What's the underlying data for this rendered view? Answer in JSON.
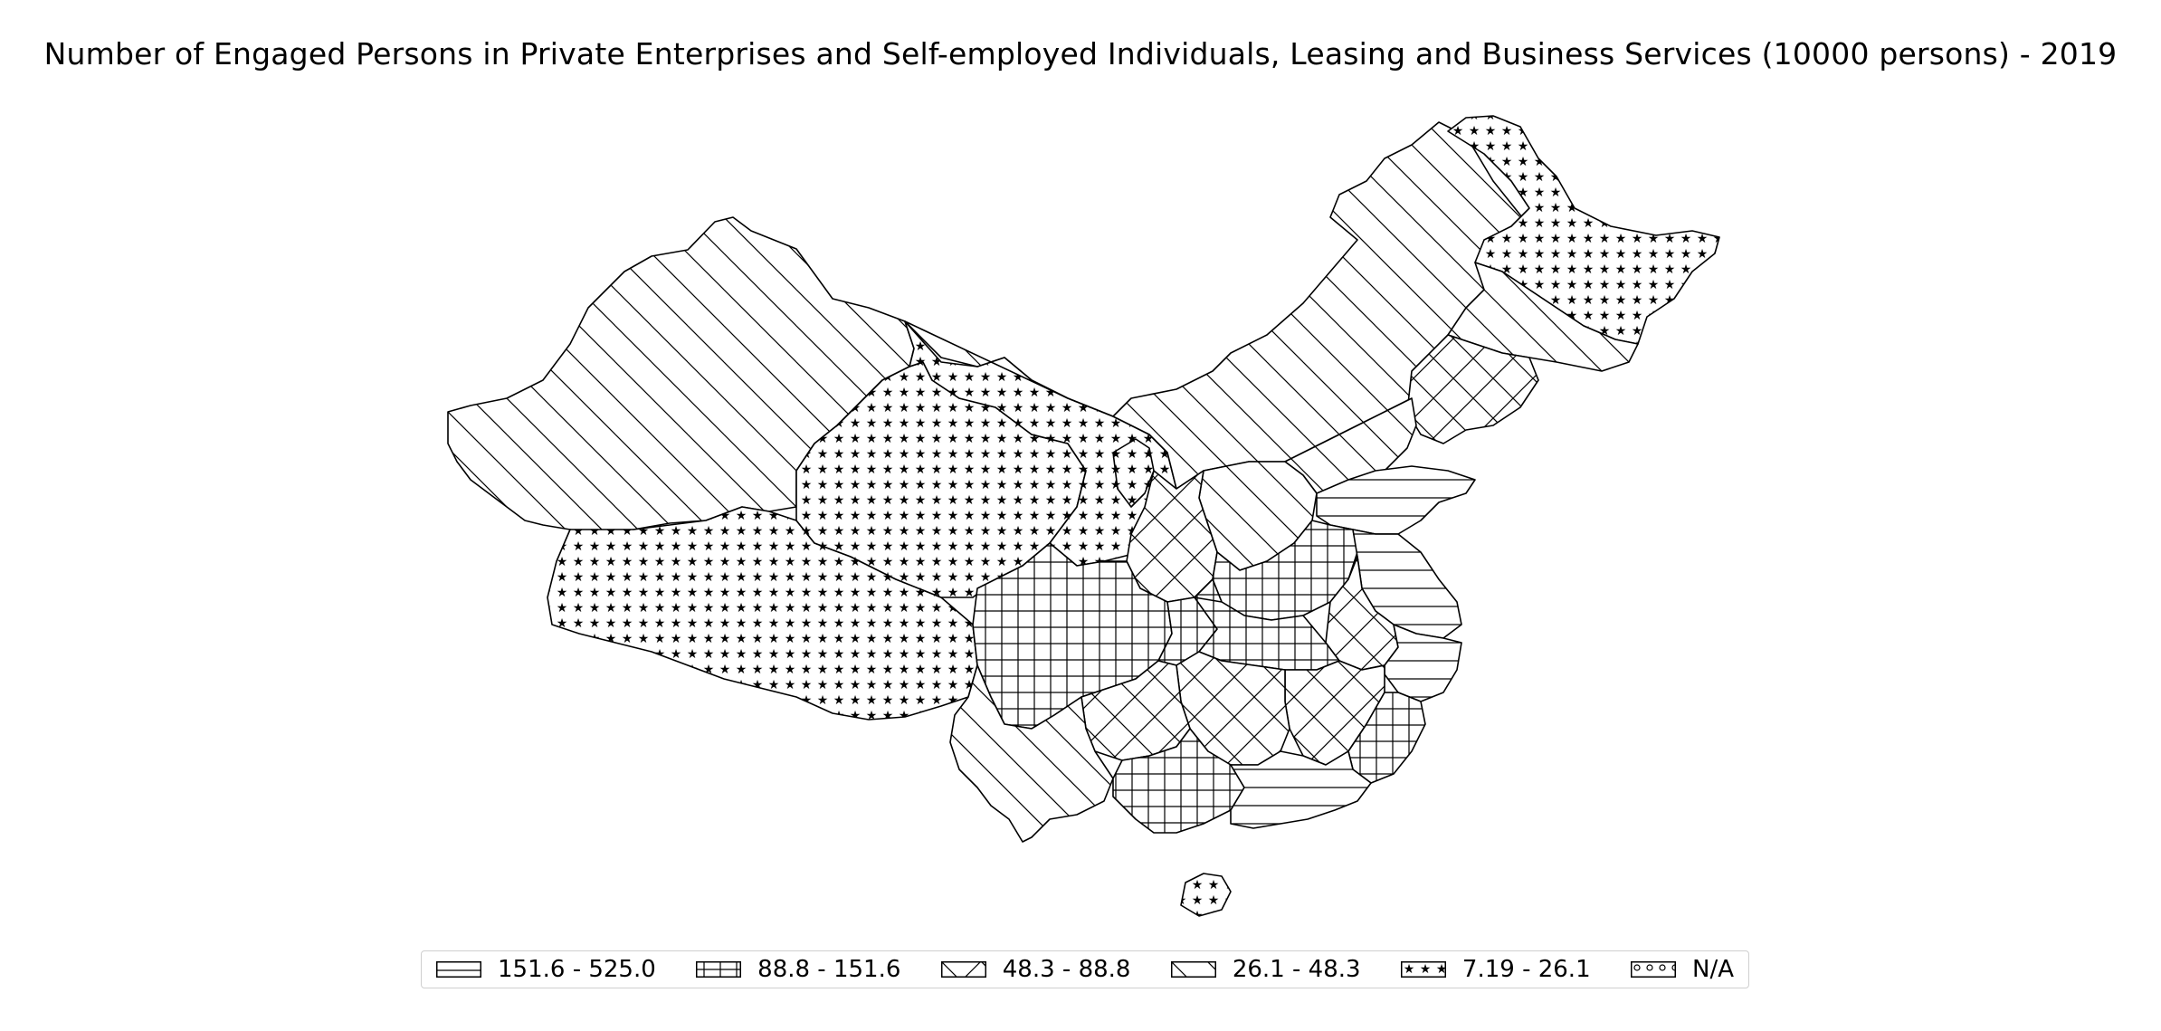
{
  "title": "Number of Engaged Persons in Private Enterprises and Self-employed Individuals, Leasing and Business Services (10000 persons) - 2019",
  "legend": [
    {
      "label": "151.6 - 525.0",
      "pattern": "hline"
    },
    {
      "label": "88.8 - 151.6",
      "pattern": "grid"
    },
    {
      "label": "48.3 - 88.8",
      "pattern": "cross"
    },
    {
      "label": "26.1 - 48.3",
      "pattern": "diag"
    },
    {
      "label": "7.19 - 26.1",
      "pattern": "star"
    },
    {
      "label": "N/A",
      "pattern": "dots"
    }
  ]
}
